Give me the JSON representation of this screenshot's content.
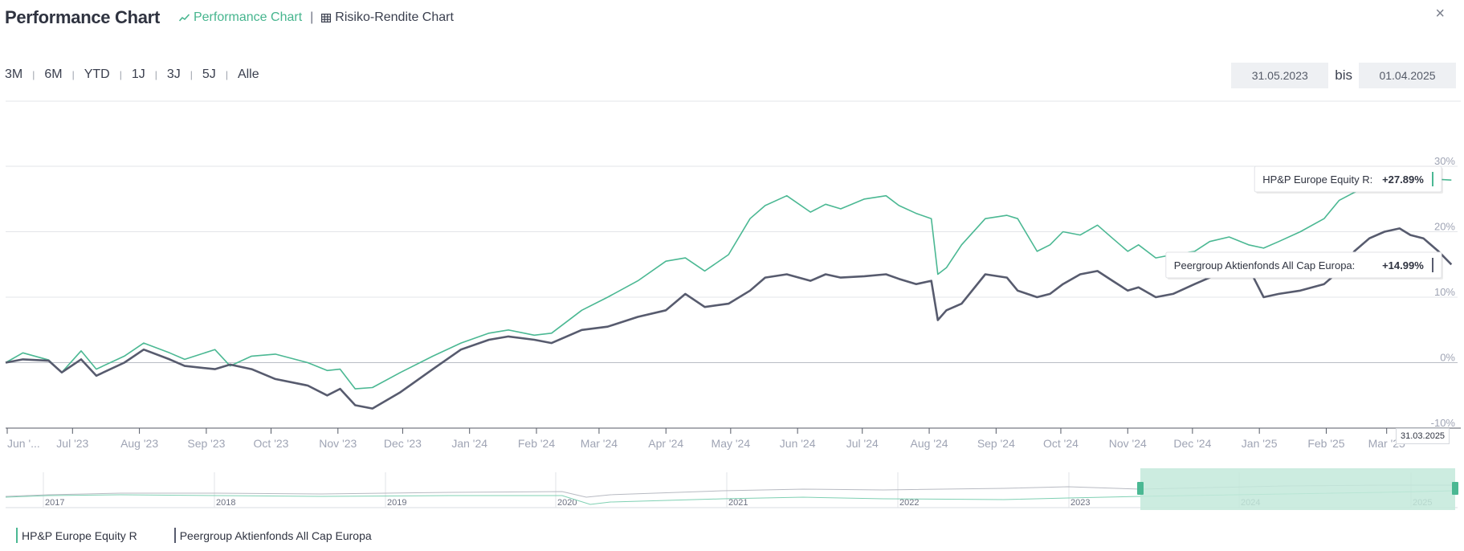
{
  "header": {
    "title": "Performance Chart",
    "tabs": [
      {
        "label": "Performance Chart",
        "icon": "line-chart-icon",
        "active": true
      },
      {
        "label": "Risiko-Rendite Chart",
        "icon": "grid-icon",
        "active": false
      }
    ],
    "separator": "|"
  },
  "close_icon": "×",
  "range_buttons": [
    "3M",
    "6M",
    "YTD",
    "1J",
    "3J",
    "5J",
    "Alle"
  ],
  "date_range": {
    "from": "31.05.2023",
    "bis_label": "bis",
    "to": "01.04.2025"
  },
  "colors": {
    "fund": "#4bb893",
    "peer": "#575b6e",
    "navigator_fill": "#c3e9da",
    "navigator_handle": "#4bb893"
  },
  "chart_data": {
    "type": "line",
    "x_labels": [
      "Jun '...",
      "Jul '23",
      "Aug '23",
      "Sep '23",
      "Oct '23",
      "Nov '23",
      "Dec '23",
      "Jan '24",
      "Feb '24",
      "Mar '24",
      "Apr '24",
      "May '24",
      "Jun '24",
      "Jul '24",
      "Aug '24",
      "Sep '24",
      "Oct '24",
      "Nov '24",
      "Dec '24",
      "Jan '25",
      "Feb '25",
      "Mar '25"
    ],
    "y_ticks": [
      "-10%",
      "0%",
      "10%",
      "20%",
      "30%"
    ],
    "ylim": [
      -10,
      30
    ],
    "grid": true,
    "series": [
      {
        "name": "HP&P Europe Equity R",
        "x": [
          "2023-05-31",
          "2023-06-08",
          "2023-06-20",
          "2023-06-26",
          "2023-07-05",
          "2023-07-12",
          "2023-07-25",
          "2023-08-03",
          "2023-08-15",
          "2023-08-22",
          "2023-09-05",
          "2023-09-12",
          "2023-09-22",
          "2023-10-03",
          "2023-10-18",
          "2023-10-27",
          "2023-11-02",
          "2023-11-09",
          "2023-11-17",
          "2023-11-30",
          "2023-12-15",
          "2023-12-28",
          "2024-01-10",
          "2024-01-19",
          "2024-01-31",
          "2024-02-08",
          "2024-02-22",
          "2024-03-05",
          "2024-03-19",
          "2024-04-01",
          "2024-04-10",
          "2024-04-19",
          "2024-04-30",
          "2024-05-10",
          "2024-05-17",
          "2024-05-27",
          "2024-06-07",
          "2024-06-14",
          "2024-06-21",
          "2024-07-02",
          "2024-07-12",
          "2024-07-18",
          "2024-07-26",
          "2024-08-02",
          "2024-08-05",
          "2024-08-09",
          "2024-08-16",
          "2024-08-27",
          "2024-09-06",
          "2024-09-11",
          "2024-09-20",
          "2024-09-26",
          "2024-10-02",
          "2024-10-10",
          "2024-10-18",
          "2024-10-25",
          "2024-11-01",
          "2024-11-06",
          "2024-11-14",
          "2024-11-22",
          "2024-12-02",
          "2024-12-09",
          "2024-12-18",
          "2024-12-27",
          "2025-01-03",
          "2025-01-10",
          "2025-01-20",
          "2025-01-31",
          "2025-02-07",
          "2025-02-14",
          "2025-02-21",
          "2025-02-28",
          "2025-03-07",
          "2025-03-12",
          "2025-03-18",
          "2025-03-25",
          "2025-03-31"
        ],
        "y": [
          0,
          1.5,
          0.4,
          -1.5,
          1.8,
          -1,
          1,
          3,
          1.5,
          0.5,
          2,
          -0.5,
          1,
          1.3,
          0,
          -1.2,
          -1,
          -4,
          -3.8,
          -1.5,
          1,
          3,
          4.5,
          5,
          4.2,
          4.5,
          8,
          10,
          12.5,
          15.5,
          16,
          14,
          16.5,
          22,
          24,
          25.5,
          23,
          24.2,
          23.5,
          25,
          25.5,
          24,
          22.8,
          22,
          13.5,
          14.5,
          18,
          22,
          22.5,
          22,
          17,
          18,
          20,
          19.5,
          21,
          19,
          17,
          18,
          16,
          16.5,
          17,
          18.5,
          19.2,
          18,
          17.5,
          18.5,
          20,
          22,
          24.8,
          26,
          27,
          27.5,
          28.5,
          27,
          29.5,
          28,
          27.89
        ]
      },
      {
        "name": "Peergroup Aktienfonds All Cap Europa",
        "x": [
          "2023-05-31",
          "2023-06-08",
          "2023-06-20",
          "2023-06-26",
          "2023-07-05",
          "2023-07-12",
          "2023-07-25",
          "2023-08-03",
          "2023-08-15",
          "2023-08-22",
          "2023-09-05",
          "2023-09-12",
          "2023-09-22",
          "2023-10-03",
          "2023-10-18",
          "2023-10-27",
          "2023-11-02",
          "2023-11-09",
          "2023-11-17",
          "2023-11-30",
          "2023-12-15",
          "2023-12-28",
          "2024-01-10",
          "2024-01-19",
          "2024-01-31",
          "2024-02-08",
          "2024-02-22",
          "2024-03-05",
          "2024-03-19",
          "2024-04-01",
          "2024-04-10",
          "2024-04-19",
          "2024-04-30",
          "2024-05-10",
          "2024-05-17",
          "2024-05-27",
          "2024-06-07",
          "2024-06-14",
          "2024-06-21",
          "2024-07-02",
          "2024-07-12",
          "2024-07-18",
          "2024-07-26",
          "2024-08-02",
          "2024-08-05",
          "2024-08-09",
          "2024-08-16",
          "2024-08-27",
          "2024-09-06",
          "2024-09-11",
          "2024-09-20",
          "2024-09-26",
          "2024-10-02",
          "2024-10-10",
          "2024-10-18",
          "2024-10-25",
          "2024-11-01",
          "2024-11-06",
          "2024-11-14",
          "2024-11-22",
          "2024-12-02",
          "2024-12-09",
          "2024-12-18",
          "2024-12-27",
          "2025-01-03",
          "2025-01-10",
          "2025-01-20",
          "2025-01-31",
          "2025-02-07",
          "2025-02-14",
          "2025-02-21",
          "2025-02-28",
          "2025-03-07",
          "2025-03-12",
          "2025-03-18",
          "2025-03-25",
          "2025-03-31"
        ],
        "y": [
          0,
          0.5,
          0.3,
          -1.5,
          0.5,
          -2,
          0,
          2,
          0.5,
          -0.5,
          -1,
          -0.3,
          -1,
          -2.5,
          -3.5,
          -5,
          -4,
          -6.5,
          -7,
          -4.5,
          -1,
          2,
          3.5,
          4,
          3.5,
          3,
          5,
          5.5,
          7,
          8,
          10.5,
          8.5,
          9,
          11,
          13,
          13.5,
          12.5,
          13.5,
          13,
          13.2,
          13.5,
          12.8,
          12,
          12.5,
          6.5,
          8,
          9,
          13.5,
          13,
          11,
          10,
          10.5,
          12,
          13.5,
          14,
          12.5,
          11,
          11.5,
          10,
          10.5,
          12,
          13,
          14,
          14.5,
          10,
          10.5,
          11,
          12,
          14,
          17,
          19,
          20,
          20.5,
          19.5,
          19,
          17,
          14.99
        ]
      }
    ],
    "tooltips": [
      {
        "series": "HP&P Europe Equity R",
        "label": "HP&P Europe Equity R:",
        "value": "+27.89%"
      },
      {
        "series": "Peergroup Aktienfonds All Cap Europa",
        "label": "Peergroup Aktienfonds All Cap Europa:",
        "value": "+14.99%"
      }
    ],
    "tooltip_date": "31.03.2025",
    "navigator": {
      "year_labels": [
        "2017",
        "2018",
        "2019",
        "2020",
        "2021",
        "2022",
        "2023",
        "2024",
        "2025"
      ],
      "selected_range": [
        "2023-05-31",
        "2025-04-01"
      ]
    },
    "legend": [
      "HP&P Europe Equity R",
      "Peergroup Aktienfonds All Cap Europa"
    ]
  }
}
